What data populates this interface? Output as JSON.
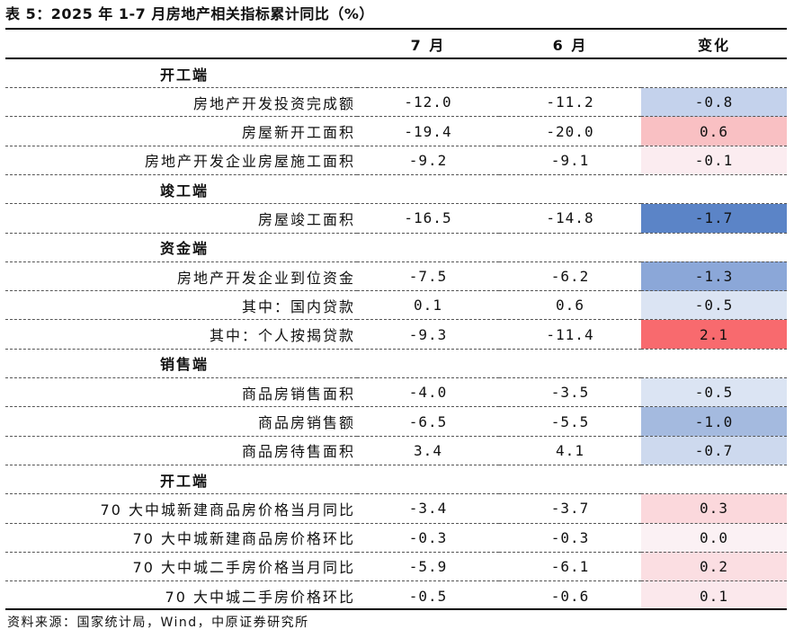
{
  "title": "表 5：2025 年 1-7 月房地产相关指标累计同比（%）",
  "headers": {
    "label": "",
    "jul": "7 月",
    "jun": "6 月",
    "change": "变化"
  },
  "rows": [
    {
      "type": "section",
      "label": "开工端"
    },
    {
      "type": "item",
      "label": "房地产开发投资完成额",
      "jul": "-12.0",
      "jun": "-11.2",
      "change": "-0.8",
      "color": "#c4d2ec"
    },
    {
      "type": "item",
      "label": "房屋新开工面积",
      "jul": "-19.4",
      "jun": "-20.0",
      "change": "0.6",
      "color": "#f9c0c3"
    },
    {
      "type": "item",
      "label": "房地产开发企业房屋施工面积",
      "jul": "-9.2",
      "jun": "-9.1",
      "change": "-0.1",
      "color": "#fbecf0"
    },
    {
      "type": "section",
      "label": "竣工端"
    },
    {
      "type": "item",
      "label": "房屋竣工面积",
      "jul": "-16.5",
      "jun": "-14.8",
      "change": "-1.7",
      "color": "#5b84c7"
    },
    {
      "type": "section",
      "label": "资金端"
    },
    {
      "type": "item",
      "label": "房地产开发企业到位资金",
      "jul": "-7.5",
      "jun": "-6.2",
      "change": "-1.3",
      "color": "#8ba7d8"
    },
    {
      "type": "item",
      "label": "其中：国内贷款",
      "jul": "0.1",
      "jun": "0.6",
      "change": "-0.5",
      "color": "#dbe4f3"
    },
    {
      "type": "item",
      "label": "其中：个人按揭贷款",
      "jul": "-9.3",
      "jun": "-11.4",
      "change": "2.1",
      "color": "#f86a6e"
    },
    {
      "type": "section",
      "label": "销售端"
    },
    {
      "type": "item",
      "label": "商品房销售面积",
      "jul": "-4.0",
      "jun": "-3.5",
      "change": "-0.5",
      "color": "#dbe4f3"
    },
    {
      "type": "item",
      "label": "商品房销售额",
      "jul": "-6.5",
      "jun": "-5.5",
      "change": "-1.0",
      "color": "#a4badf"
    },
    {
      "type": "item",
      "label": "商品房待售面积",
      "jul": "3.4",
      "jun": "4.1",
      "change": "-0.7",
      "color": "#cdd9ee"
    },
    {
      "type": "section",
      "label": "开工端"
    },
    {
      "type": "item",
      "label": "70 大中城新建商品房价格当月同比",
      "jul": "-3.4",
      "jun": "-3.7",
      "change": "0.3",
      "color": "#fbd8dc"
    },
    {
      "type": "item",
      "label": "70 大中城新建商品房价格环比",
      "jul": "-0.3",
      "jun": "-0.3",
      "change": "0.0",
      "color": "#fbf1f4"
    },
    {
      "type": "item",
      "label": "70 大中城二手房价格当月同比",
      "jul": "-5.9",
      "jun": "-6.1",
      "change": "0.2",
      "color": "#fbdee2"
    },
    {
      "type": "item",
      "label": "70 大中城二手房价格环比",
      "jul": "-0.5",
      "jun": "-0.6",
      "change": "0.1",
      "color": "#fbe8ec"
    }
  ],
  "source": "资料来源：国家统计局，Wind，中原证券研究所"
}
